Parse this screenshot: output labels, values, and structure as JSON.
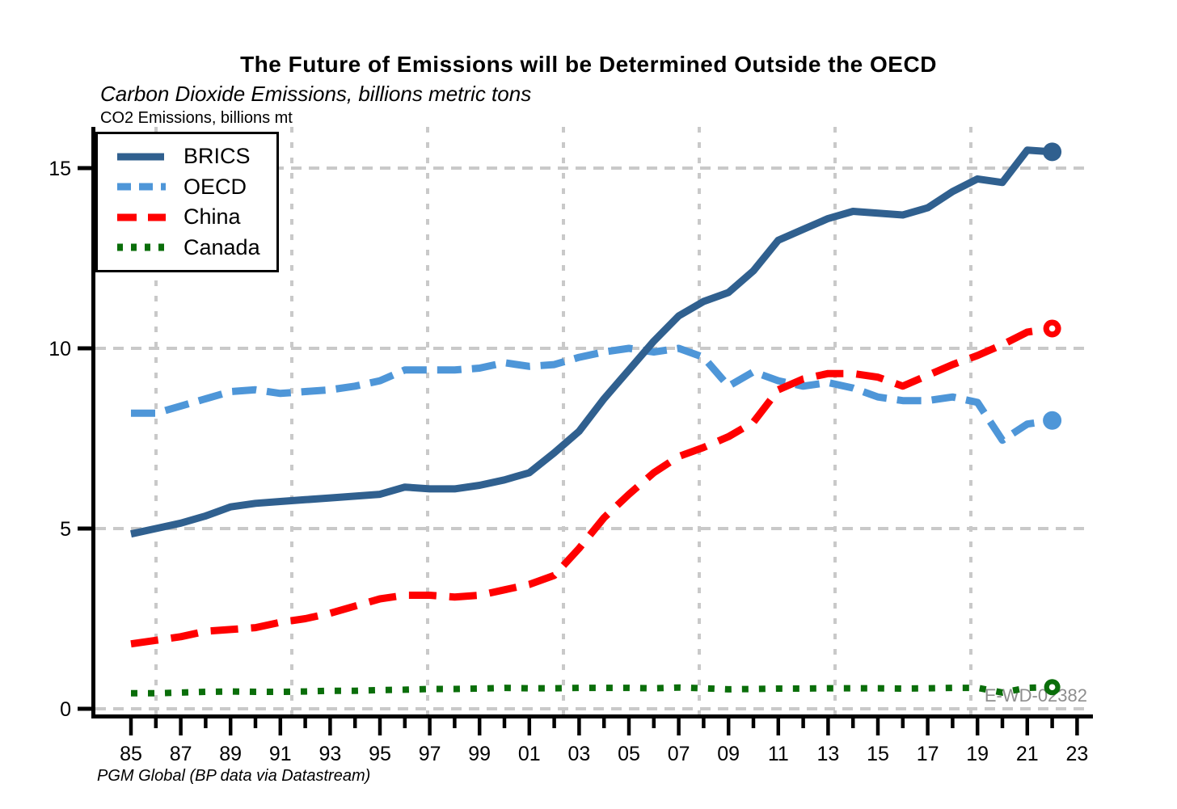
{
  "page": {
    "title": "The Future of Emissions will be Determined Outside the OECD",
    "subtitle": "Carbon Dioxide Emissions, billions metric tons",
    "y_axis_title": "CO2 Emissions, billions mt",
    "source_note": "PGM Global (BP data via Datastream)",
    "watermark": "E-WD-02382"
  },
  "chart_data": {
    "type": "line",
    "title": "The Future of Emissions will be Determined Outside the OECD",
    "subtitle": "Carbon Dioxide Emissions, billions metric tons",
    "ylabel": "CO2 Emissions, billions mt",
    "xlabel": "",
    "ylim": [
      0,
      16.1
    ],
    "yticks": [
      0,
      5,
      10,
      15
    ],
    "grid": true,
    "legend_position": "top-left",
    "grid_color": "#c9c9c9",
    "axis_color": "#000000",
    "watermark_color": "#8e8e8e",
    "xtick_years": [
      1985,
      1987,
      1989,
      1991,
      1993,
      1995,
      1997,
      1999,
      2001,
      2003,
      2005,
      2007,
      2009,
      2011,
      2013,
      2015,
      2017,
      2019,
      2021,
      2023
    ],
    "xtick_labels": [
      "85",
      "87",
      "89",
      "91",
      "93",
      "95",
      "97",
      "99",
      "01",
      "03",
      "05",
      "07",
      "09",
      "11",
      "13",
      "15",
      "17",
      "19",
      "21",
      "23"
    ],
    "x": [
      1985,
      1986,
      1987,
      1988,
      1989,
      1990,
      1991,
      1992,
      1993,
      1994,
      1995,
      1996,
      1997,
      1998,
      1999,
      2000,
      2001,
      2002,
      2003,
      2004,
      2005,
      2006,
      2007,
      2008,
      2009,
      2010,
      2011,
      2012,
      2013,
      2014,
      2015,
      2016,
      2017,
      2018,
      2019,
      2020,
      2021,
      2022
    ],
    "series": [
      {
        "name": "BRICS",
        "color": "#30608f",
        "style": "solid",
        "line_width": 9,
        "end_marker": "filled-circle",
        "values": [
          4.85,
          5.0,
          5.15,
          5.35,
          5.6,
          5.7,
          5.75,
          5.8,
          5.85,
          5.9,
          5.95,
          6.15,
          6.1,
          6.1,
          6.2,
          6.35,
          6.55,
          7.1,
          7.7,
          8.6,
          9.4,
          10.2,
          10.9,
          11.3,
          11.55,
          12.15,
          13.0,
          13.3,
          13.6,
          13.8,
          13.75,
          13.7,
          13.9,
          14.35,
          14.7,
          14.6,
          15.5,
          15.45
        ]
      },
      {
        "name": "OECD",
        "color": "#4e96d8",
        "style": "dashed",
        "line_width": 9,
        "end_marker": "filled-circle",
        "values": [
          8.2,
          8.2,
          8.4,
          8.6,
          8.8,
          8.85,
          8.75,
          8.8,
          8.85,
          8.95,
          9.1,
          9.4,
          9.4,
          9.4,
          9.45,
          9.6,
          9.5,
          9.55,
          9.75,
          9.9,
          10.0,
          9.9,
          10.0,
          9.75,
          8.95,
          9.35,
          9.1,
          8.95,
          9.05,
          8.9,
          8.65,
          8.55,
          8.55,
          8.65,
          8.5,
          7.45,
          7.9,
          8.0
        ]
      },
      {
        "name": "China",
        "color": "#ff0000",
        "style": "dashed",
        "line_width": 9,
        "end_marker": "open-circle",
        "values": [
          1.8,
          1.9,
          2.0,
          2.15,
          2.2,
          2.25,
          2.4,
          2.5,
          2.65,
          2.85,
          3.05,
          3.15,
          3.15,
          3.1,
          3.15,
          3.3,
          3.45,
          3.7,
          4.45,
          5.3,
          5.95,
          6.55,
          7.0,
          7.25,
          7.55,
          7.95,
          8.85,
          9.15,
          9.3,
          9.3,
          9.2,
          8.95,
          9.25,
          9.55,
          9.8,
          10.1,
          10.45,
          10.55
        ]
      },
      {
        "name": "Canada",
        "color": "#0a6e0a",
        "style": "dotted",
        "line_width": 8,
        "end_marker": "open-circle",
        "values": [
          0.43,
          0.43,
          0.45,
          0.47,
          0.48,
          0.47,
          0.47,
          0.48,
          0.5,
          0.5,
          0.52,
          0.53,
          0.55,
          0.55,
          0.56,
          0.58,
          0.57,
          0.57,
          0.58,
          0.58,
          0.58,
          0.57,
          0.59,
          0.57,
          0.54,
          0.55,
          0.56,
          0.56,
          0.57,
          0.57,
          0.57,
          0.56,
          0.57,
          0.58,
          0.58,
          0.45,
          0.58,
          0.6
        ]
      }
    ]
  }
}
